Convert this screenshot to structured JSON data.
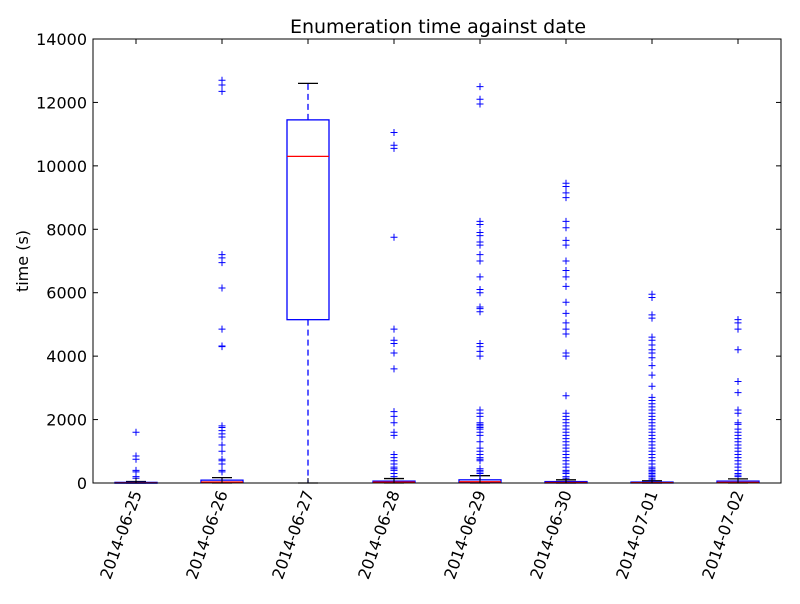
{
  "chart_data": {
    "type": "boxplot",
    "title": "Enumeration time against date",
    "xlabel": "",
    "ylabel": "time (s)",
    "ylim": [
      0,
      14000
    ],
    "yticks": [
      0,
      2000,
      4000,
      6000,
      8000,
      10000,
      12000,
      14000
    ],
    "categories": [
      "2014-06-25",
      "2014-06-26",
      "2014-06-27",
      "2014-06-28",
      "2014-06-29",
      "2014-06-30",
      "2014-07-01",
      "2014-07-02"
    ],
    "boxes": [
      {
        "q1": 0,
        "median": 5,
        "q3": 20,
        "whisker_low": 0,
        "whisker_high": 45,
        "outliers": [
          150,
          200,
          350,
          400,
          750,
          850,
          1600
        ]
      },
      {
        "q1": 5,
        "median": 30,
        "q3": 90,
        "whisker_low": 0,
        "whisker_high": 170,
        "outliers": [
          350,
          400,
          600,
          700,
          750,
          1000,
          1200,
          1450,
          1550,
          1650,
          1750,
          1800,
          4300,
          4320,
          4850,
          6150,
          6950,
          7100,
          7200,
          12350,
          12550,
          12700
        ]
      },
      {
        "q1": 5150,
        "median": 10300,
        "q3": 11450,
        "whisker_low": 0,
        "whisker_high": 12600,
        "outliers": []
      },
      {
        "q1": 5,
        "median": 25,
        "q3": 60,
        "whisker_low": 0,
        "whisker_high": 140,
        "outliers": [
          200,
          300,
          400,
          450,
          500,
          600,
          700,
          800,
          900,
          1500,
          1600,
          1900,
          2100,
          2250,
          3600,
          4100,
          4400,
          4500,
          4850,
          7750,
          10550,
          10650,
          11050
        ]
      },
      {
        "q1": 10,
        "median": 40,
        "q3": 100,
        "whisker_low": 0,
        "whisker_high": 230,
        "outliers": [
          300,
          350,
          400,
          450,
          700,
          750,
          800,
          900,
          1000,
          1100,
          1300,
          1500,
          1600,
          1700,
          1750,
          1800,
          1850,
          1900,
          2100,
          2200,
          2300,
          4000,
          4150,
          4300,
          4400,
          5400,
          5500,
          5550,
          6000,
          6100,
          6500,
          7000,
          7200,
          7500,
          7600,
          7800,
          7900,
          8150,
          8250,
          11950,
          12100,
          12500
        ]
      },
      {
        "q1": 0,
        "median": 15,
        "q3": 45,
        "whisker_low": 0,
        "whisker_high": 100,
        "outliers": [
          150,
          200,
          300,
          350,
          400,
          500,
          600,
          700,
          800,
          900,
          1000,
          1100,
          1200,
          1300,
          1400,
          1500,
          1600,
          1700,
          1800,
          1900,
          2000,
          2100,
          2200,
          2750,
          4000,
          4100,
          4700,
          4850,
          5050,
          5350,
          5700,
          6200,
          6500,
          6700,
          7000,
          7500,
          7650,
          8050,
          8250,
          9000,
          9150,
          9350,
          9450
        ]
      },
      {
        "q1": 0,
        "median": 10,
        "q3": 30,
        "whisker_low": 0,
        "whisker_high": 70,
        "outliers": [
          100,
          150,
          200,
          250,
          300,
          350,
          400,
          450,
          500,
          600,
          700,
          800,
          900,
          1000,
          1100,
          1200,
          1300,
          1400,
          1500,
          1600,
          1700,
          1800,
          1900,
          2000,
          2100,
          2200,
          2300,
          2400,
          2500,
          2600,
          2700,
          3050,
          3400,
          3700,
          3950,
          4100,
          4200,
          4350,
          4500,
          4600,
          5200,
          5300,
          5850,
          5950
        ]
      },
      {
        "q1": 5,
        "median": 20,
        "q3": 60,
        "whisker_low": 0,
        "whisker_high": 130,
        "outliers": [
          200,
          250,
          300,
          400,
          500,
          600,
          700,
          800,
          900,
          1000,
          1100,
          1200,
          1300,
          1400,
          1500,
          1600,
          1700,
          1850,
          1900,
          2200,
          2300,
          2850,
          3200,
          4200,
          4850,
          5050,
          5150
        ]
      }
    ],
    "colors": {
      "box": "#0000ff",
      "median": "#ff0000",
      "whisker": "#0000ff",
      "cap": "#000000",
      "outlier": "#0000ff"
    },
    "grid": false,
    "legend": "none"
  }
}
